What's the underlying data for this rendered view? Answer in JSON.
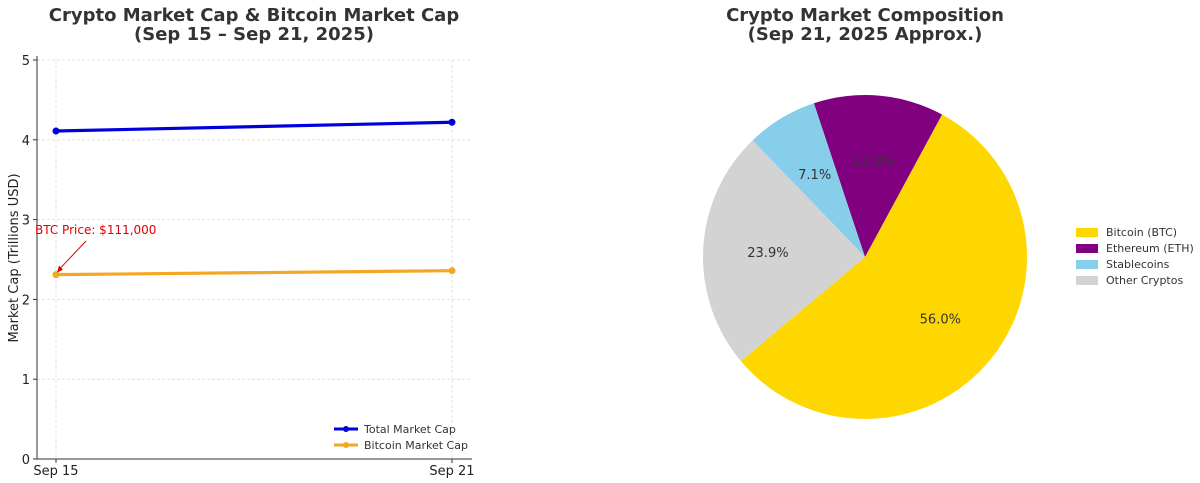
{
  "chart_data": [
    {
      "type": "line",
      "title": [
        "Crypto Market Cap & Bitcoin Market Cap",
        "(Sep 15 – Sep 21, 2025)"
      ],
      "xlabel": "",
      "ylabel": "Market Cap (Trillions USD)",
      "categories": [
        "Sep 15",
        "Sep 21"
      ],
      "ylim": [
        0,
        5
      ],
      "yticks": [
        "0",
        "1",
        "2",
        "3",
        "4",
        "5"
      ],
      "grid": true,
      "legend_position": "bottom-right",
      "series": [
        {
          "name": "Total Market Cap",
          "values": [
            4.11,
            4.22
          ],
          "color": "#0000dd"
        },
        {
          "name": "Bitcoin Market Cap",
          "values": [
            2.31,
            2.36
          ],
          "color": "#f5a623"
        }
      ],
      "annotation": {
        "text": "BTC Price: $111,000",
        "series_index": 1,
        "point_index": 0,
        "color": "#e00000"
      }
    },
    {
      "type": "pie",
      "title": [
        "Crypto Market Composition",
        "(Sep 21, 2025 Approx.)"
      ],
      "start_angle_deg": 220,
      "direction": "counterclockwise",
      "legend_position": "right",
      "slices": [
        {
          "label": "Bitcoin (BTC)",
          "value": 56.0,
          "pct_label": "56.0%",
          "color": "#ffd700"
        },
        {
          "label": "Ethereum (ETH)",
          "value": 13.0,
          "pct_label": "13.0%",
          "color": "#800080"
        },
        {
          "label": "Stablecoins",
          "value": 7.1,
          "pct_label": "7.1%",
          "color": "#87ceeb"
        },
        {
          "label": "Other Cryptos",
          "value": 23.9,
          "pct_label": "23.9%",
          "color": "#d3d3d3"
        }
      ]
    }
  ]
}
